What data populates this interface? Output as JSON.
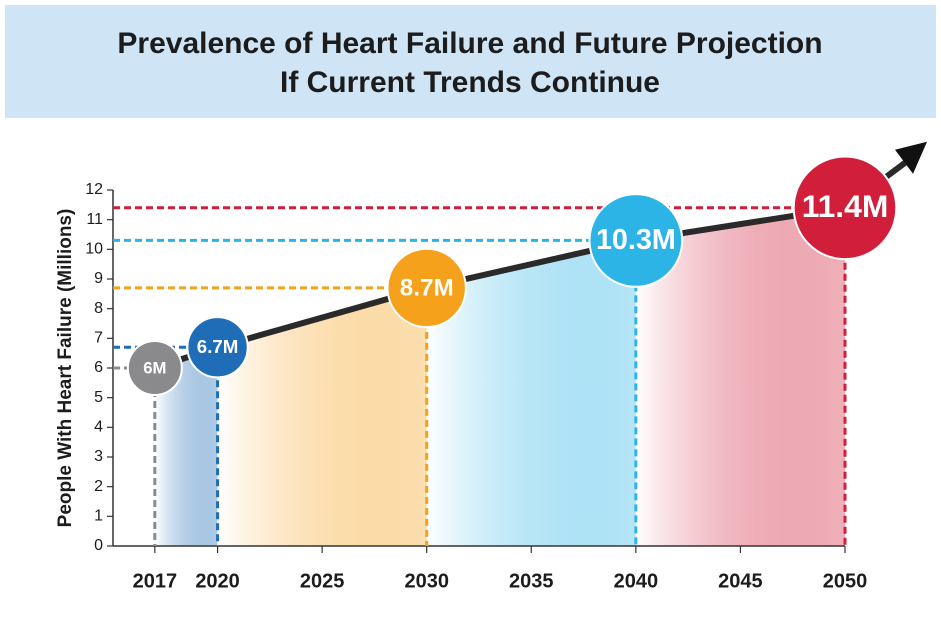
{
  "chart_data": {
    "type": "bubble-line",
    "title": [
      "Prevalence of Heart Failure and Future Projection",
      "If Current Trends Continue"
    ],
    "y_label": "People With Heart Failure (Millions)",
    "x": [
      2017,
      2020,
      2030,
      2040,
      2050
    ],
    "series": [
      {
        "values": [
          6,
          6.7,
          8.7,
          10.3,
          11.4
        ],
        "value_labels": [
          "6M",
          "6.7M",
          "8.7M",
          "10.3M",
          "11.4M"
        ],
        "colors": [
          "#8a8a8c",
          "#1f6db6",
          "#f5a11c",
          "#2cb4e6",
          "#d11f3b"
        ],
        "line_color": "#2a2a2a"
      }
    ],
    "xlim": [
      2015,
      2050
    ],
    "xticks": [
      2017,
      2020,
      2025,
      2030,
      2035,
      2040,
      2045,
      2050
    ],
    "ylim": [
      0,
      12
    ],
    "yticks": [
      0,
      1,
      2,
      3,
      4,
      5,
      6,
      7,
      8,
      9,
      10,
      11,
      12
    ]
  }
}
